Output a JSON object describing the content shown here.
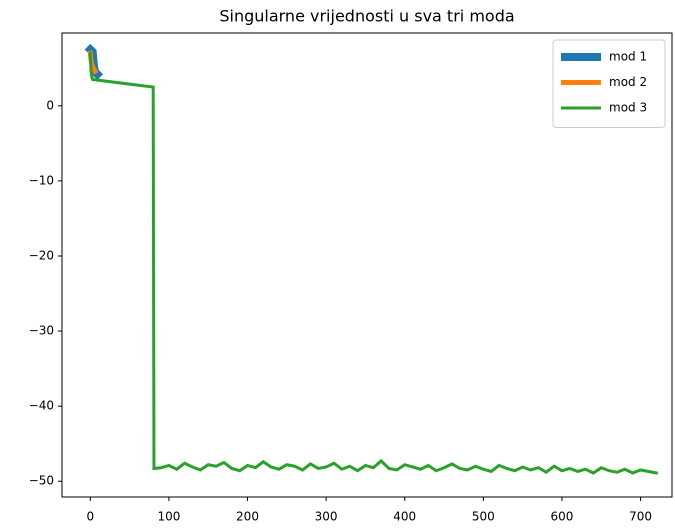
{
  "chart_data": {
    "type": "line",
    "title": "Singularne vrijednosti u sva tri moda",
    "xlim": [
      -36,
      740
    ],
    "ylim": [
      -52.1,
      9.7
    ],
    "xticks": [
      0,
      100,
      200,
      300,
      400,
      500,
      600,
      700
    ],
    "yticks": [
      0,
      {
        "value": -10,
        "label": "−10"
      },
      {
        "value": -20,
        "label": "−20"
      },
      {
        "value": -30,
        "label": "−30"
      },
      {
        "value": -40,
        "label": "−40"
      },
      {
        "value": -50,
        "label": "−50"
      }
    ],
    "legend": "upper right",
    "grid": false,
    "series": [
      {
        "name": "mod 1",
        "color": "#1f77b4",
        "linewidth": 8,
        "x": [
          0,
          1,
          2,
          3,
          4,
          5,
          6,
          7,
          8,
          9
        ],
        "values": [
          7.5,
          7.4,
          7.3,
          7.2,
          6.0,
          5.0,
          4.6,
          4.4,
          4.3,
          4.2
        ]
      },
      {
        "name": "mod 2",
        "color": "#ff7f0e",
        "linewidth": 5,
        "x": [
          0,
          1,
          2,
          3,
          4,
          5,
          6
        ],
        "values": [
          7.0,
          6.0,
          5.5,
          5.2,
          5.0,
          4.8,
          4.6
        ]
      },
      {
        "name": "mod 3",
        "color": "#2ca02c",
        "linewidth": 3,
        "x": [
          0,
          1,
          2,
          3,
          80,
          81,
          90,
          100,
          110,
          120,
          130,
          140,
          150,
          160,
          170,
          180,
          190,
          200,
          210,
          220,
          230,
          240,
          250,
          260,
          270,
          280,
          290,
          300,
          310,
          320,
          330,
          340,
          350,
          360,
          370,
          380,
          390,
          400,
          410,
          420,
          430,
          440,
          450,
          460,
          470,
          480,
          490,
          500,
          510,
          520,
          530,
          540,
          550,
          560,
          570,
          580,
          590,
          600,
          610,
          620,
          630,
          640,
          650,
          660,
          670,
          680,
          690,
          700,
          710,
          720
        ],
        "values": [
          7.0,
          4.5,
          3.8,
          3.5,
          2.5,
          -48.3,
          -48.2,
          -47.9,
          -48.4,
          -47.6,
          -48.1,
          -48.5,
          -47.8,
          -48.0,
          -47.5,
          -48.3,
          -48.6,
          -47.9,
          -48.2,
          -47.4,
          -48.1,
          -48.4,
          -47.8,
          -48.0,
          -48.5,
          -47.7,
          -48.3,
          -48.1,
          -47.6,
          -48.4,
          -48.0,
          -48.6,
          -47.9,
          -48.2,
          -47.3,
          -48.3,
          -48.5,
          -47.8,
          -48.1,
          -48.4,
          -47.9,
          -48.6,
          -48.2,
          -47.7,
          -48.3,
          -48.5,
          -48.0,
          -48.4,
          -48.7,
          -47.9,
          -48.3,
          -48.6,
          -48.1,
          -48.5,
          -48.2,
          -48.8,
          -48.0,
          -48.6,
          -48.3,
          -48.7,
          -48.4,
          -48.9,
          -48.2,
          -48.6,
          -48.8,
          -48.4,
          -48.9,
          -48.5,
          -48.7,
          -48.9
        ]
      }
    ]
  }
}
